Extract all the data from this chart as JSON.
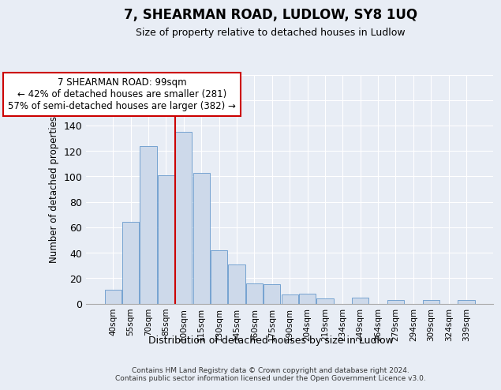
{
  "title": "7, SHEARMAN ROAD, LUDLOW, SY8 1UQ",
  "subtitle": "Size of property relative to detached houses in Ludlow",
  "xlabel": "Distribution of detached houses by size in Ludlow",
  "ylabel": "Number of detached properties",
  "bar_labels": [
    "40sqm",
    "55sqm",
    "70sqm",
    "85sqm",
    "100sqm",
    "115sqm",
    "130sqm",
    "145sqm",
    "160sqm",
    "175sqm",
    "190sqm",
    "204sqm",
    "219sqm",
    "234sqm",
    "249sqm",
    "264sqm",
    "279sqm",
    "294sqm",
    "309sqm",
    "324sqm",
    "339sqm"
  ],
  "bar_values": [
    11,
    64,
    124,
    101,
    135,
    103,
    42,
    31,
    16,
    15,
    7,
    8,
    4,
    0,
    5,
    0,
    3,
    0,
    3,
    0,
    3
  ],
  "bar_color": "#cdd9ea",
  "bar_edge_color": "#6699cc",
  "ylim": [
    0,
    180
  ],
  "yticks": [
    0,
    20,
    40,
    60,
    80,
    100,
    120,
    140,
    160,
    180
  ],
  "vline_index": 4,
  "vline_color": "#cc0000",
  "annotation_title": "7 SHEARMAN ROAD: 99sqm",
  "annotation_line1": "← 42% of detached houses are smaller (281)",
  "annotation_line2": "57% of semi-detached houses are larger (382) →",
  "annotation_box_color": "#ffffff",
  "annotation_box_edge": "#cc0000",
  "footer_line1": "Contains HM Land Registry data © Crown copyright and database right 2024.",
  "footer_line2": "Contains public sector information licensed under the Open Government Licence v3.0.",
  "background_color": "#e8edf5",
  "plot_background": "#e8edf5",
  "grid_color": "#ffffff"
}
